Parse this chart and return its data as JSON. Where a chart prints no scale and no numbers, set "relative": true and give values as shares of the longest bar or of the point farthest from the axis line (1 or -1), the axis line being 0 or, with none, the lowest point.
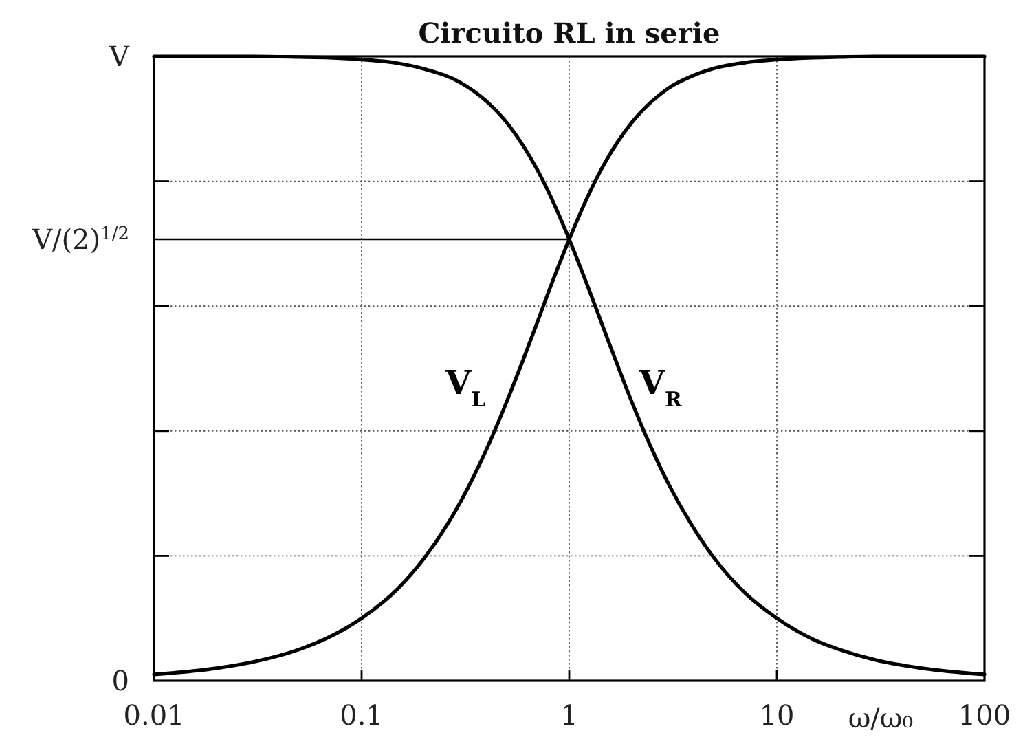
{
  "chart_data": {
    "type": "line",
    "title": "Circuito RL in serie",
    "xlabel": "ω/ω₀",
    "log": "x",
    "grid": "x",
    "relative": true,
    "xlim": [
      0.01,
      100
    ],
    "xticks": [
      0.01,
      0.1,
      1,
      10,
      100
    ],
    "x": [
      0.01,
      0.02,
      0.03,
      0.05,
      0.07,
      0.1,
      0.15,
      0.2,
      0.3,
      0.4,
      0.5,
      0.6,
      0.7,
      0.8,
      1,
      1.25,
      1.5,
      2,
      2.5,
      3,
      4,
      5,
      7,
      10,
      15,
      20,
      30,
      50,
      100
    ],
    "series": [
      {
        "name": "V$_{L}$",
        "color": "#000000",
        "values": [
          0.01,
          0.02,
          0.03,
          0.05,
          0.07,
          0.1,
          0.148,
          0.196,
          0.287,
          0.371,
          0.447,
          0.514,
          0.573,
          0.625,
          0.707,
          0.781,
          0.832,
          0.894,
          0.928,
          0.949,
          0.97,
          0.981,
          0.99,
          0.995,
          0.998,
          0.999,
          1,
          1,
          1
        ]
      },
      {
        "name": "V$_{R}$",
        "color": "#000000",
        "values": [
          1,
          1,
          1,
          0.999,
          0.998,
          0.995,
          0.989,
          0.98,
          0.958,
          0.928,
          0.894,
          0.857,
          0.819,
          0.781,
          0.707,
          0.625,
          0.555,
          0.447,
          0.371,
          0.316,
          0.243,
          0.196,
          0.141,
          0.1,
          0.066,
          0.05,
          0.033,
          0.02,
          0.01
        ]
      },
      {
        "name": "V/(2)$^{1/2}$",
        "color": "#000000",
        "x": [
          0.01,
          1
        ],
        "values": [
          0.707,
          0.707
        ]
      }
    ],
    "ref_lines": [
      {
        "axis": "y",
        "value": 0.2,
        "line_style": "dotted",
        "color": "#555555"
      },
      {
        "axis": "y",
        "value": 0.4,
        "line_style": "dotted",
        "color": "#555555"
      },
      {
        "axis": "y",
        "value": 0.6,
        "line_style": "dotted",
        "color": "#555555"
      },
      {
        "axis": "y",
        "value": 0.8,
        "line_style": "dotted",
        "color": "#555555"
      }
    ],
    "annotations": [
      "V",
      "0"
    ]
  }
}
